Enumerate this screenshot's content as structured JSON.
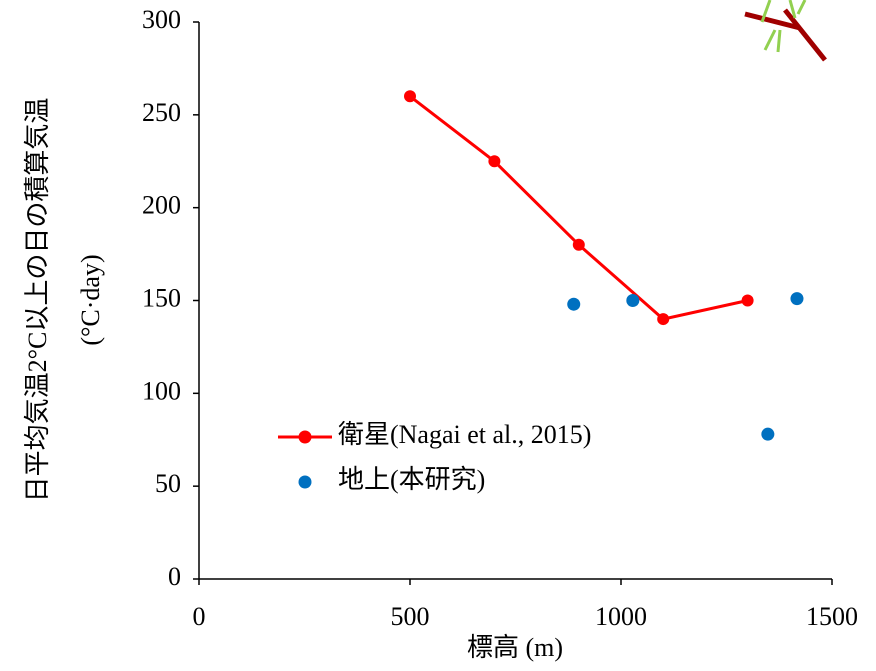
{
  "chart_data": {
    "type": "line",
    "xlabel": "標高 (m)",
    "ylabel": [
      "日平均気温2°C以上の日の積算気温",
      "(°C·day)"
    ],
    "xlim": [
      0,
      1500
    ],
    "xticks": [
      0,
      500,
      1000,
      1500
    ],
    "ylim": [
      0,
      300
    ],
    "yticks": [
      0,
      50,
      100,
      150,
      200,
      250,
      300
    ],
    "series": [
      {
        "name": "衛星(Nagai et al., 2015)",
        "type": "line",
        "color": "#ff0000",
        "x": [
          500,
          700,
          900,
          1100,
          1300
        ],
        "values": [
          260,
          225,
          180,
          140,
          150
        ]
      },
      {
        "name": "地上(本研究)",
        "type": "scatter",
        "color": "#0070c0",
        "x": [
          888,
          1028,
          1348,
          1417
        ],
        "values": [
          148,
          150,
          78,
          151
        ]
      }
    ]
  }
}
